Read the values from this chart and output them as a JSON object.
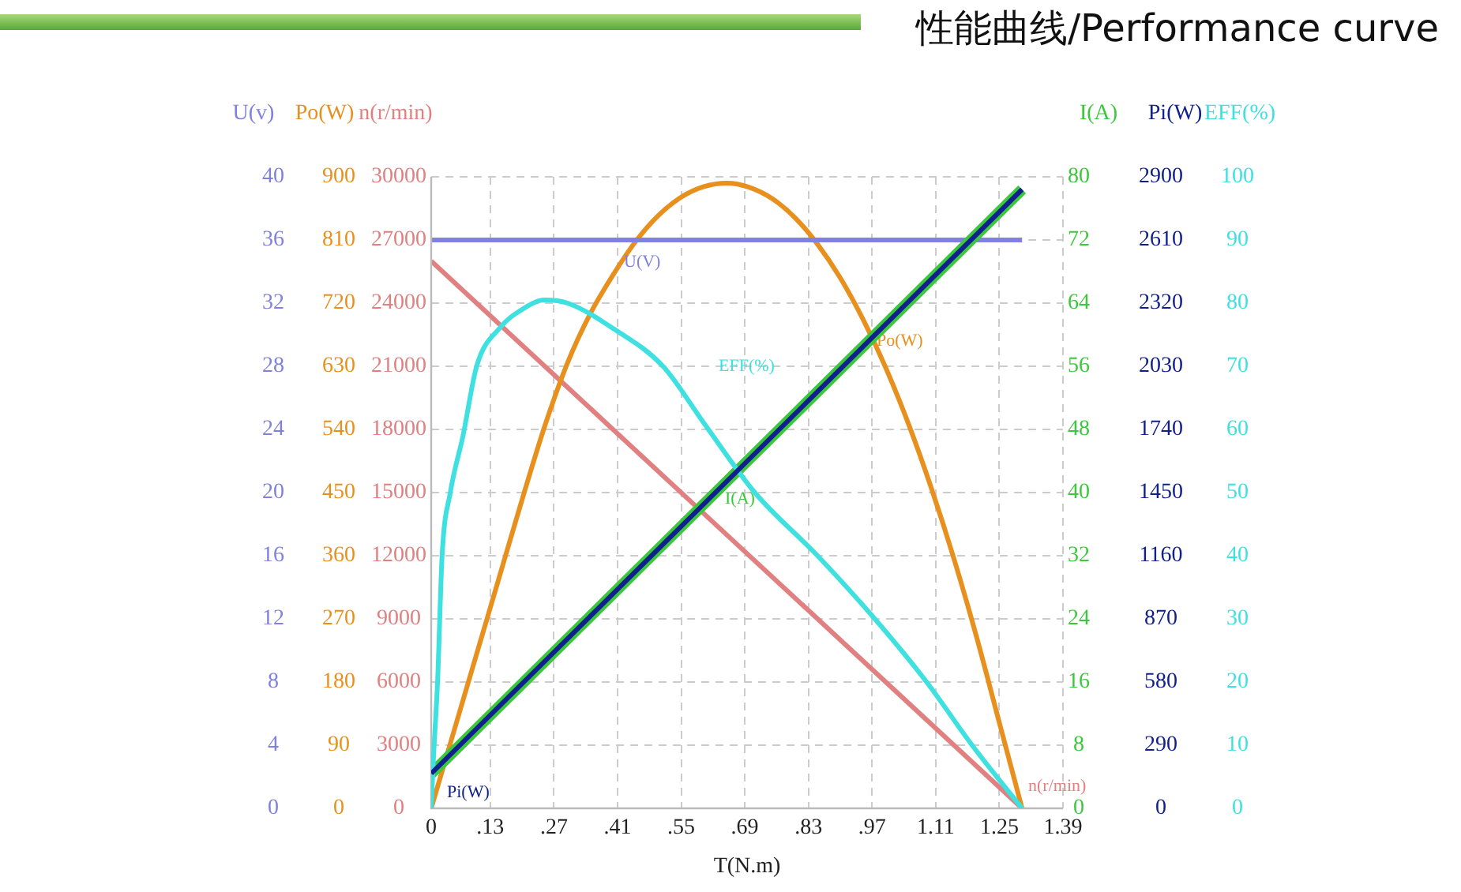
{
  "chart_data": [
    {
      "type": "line",
      "title": "性能曲线/Performance curve",
      "xlabel": "T(N.m)",
      "ylabel": "U(v)",
      "y2label": "Po(W)",
      "y3label": "n(r/min)",
      "xlim": [
        0,
        1.39
      ],
      "xticks": [
        0,
        {
          "value": 0.13,
          "label": ".13"
        },
        {
          "value": 0.27,
          "label": ".27"
        },
        {
          "value": 0.41,
          "label": ".41"
        },
        {
          "value": 0.55,
          "label": ".55"
        },
        {
          "value": 0.69,
          "label": ".69"
        },
        {
          "value": 0.83,
          "label": ".83"
        },
        {
          "value": 0.97,
          "label": ".97"
        },
        1.11,
        1.25,
        1.39
      ],
      "ylim": [
        0,
        40
      ],
      "yticks": [
        0,
        4,
        8,
        12,
        16,
        20,
        24,
        28,
        32,
        36,
        40
      ],
      "y2lim": [
        0,
        900
      ],
      "y2ticks": [
        0,
        90,
        180,
        270,
        360,
        450,
        540,
        630,
        720,
        810,
        900
      ],
      "y3lim": [
        0,
        30000
      ],
      "y3ticks": [
        0,
        3000,
        6000,
        9000,
        12000,
        15000,
        18000,
        21000,
        24000,
        27000,
        30000
      ],
      "grid": true,
      "legend": false,
      "marker": "none",
      "series": [
        {
          "name": "U(V)",
          "color": "#8080e0",
          "axis": "y",
          "x": [
            0,
            1.3
          ],
          "values": [
            36,
            36
          ]
        },
        {
          "name": "Po(W)",
          "color": "#e8901e",
          "axis": "y2",
          "x": [
            0,
            0.05,
            0.1,
            0.15,
            0.2,
            0.25,
            0.3,
            0.35,
            0.4,
            0.45,
            0.5,
            0.55,
            0.6,
            0.65,
            0.7,
            0.75,
            0.8,
            0.85,
            0.9,
            0.95,
            1.0,
            1.05,
            1.1,
            1.15,
            1.2,
            1.25,
            1.3
          ],
          "values": [
            0,
            110,
            220,
            330,
            440,
            545,
            635,
            705,
            760,
            808,
            845,
            871,
            886,
            891,
            885,
            869,
            842,
            804,
            756,
            697,
            628,
            548,
            457,
            356,
            244,
            122,
            0
          ]
        },
        {
          "name": "n(r/min)",
          "color": "#e08080",
          "axis": "y3",
          "x": [
            0,
            1.3
          ],
          "values": [
            26000,
            0
          ]
        }
      ]
    },
    {
      "type": "line",
      "ylabel": "I(A)",
      "y2label": "Pi(W)",
      "y3label": "EFF(%)",
      "xlim": [
        0,
        1.39
      ],
      "tick_labels": "y",
      "ylim": [
        0,
        80
      ],
      "yticks": [
        0,
        8,
        16,
        24,
        32,
        40,
        48,
        56,
        64,
        72,
        80
      ],
      "y2lim": [
        0,
        2900
      ],
      "y2ticks": [
        0,
        290,
        580,
        870,
        1160,
        1450,
        1740,
        2030,
        2320,
        2610,
        2900
      ],
      "y3lim": [
        0,
        100
      ],
      "y3ticks": [
        0,
        10,
        20,
        30,
        40,
        50,
        60,
        70,
        80,
        90,
        100
      ],
      "legend": false,
      "marker": "none",
      "series": [
        {
          "name": "Pi(W)",
          "color": "#10208c",
          "axis": "y2",
          "x": [
            0,
            1.3
          ],
          "values": [
            160,
            2842
          ]
        },
        {
          "name": "EFF(%)",
          "color": "#3ee0e0",
          "axis": "y3",
          "x": [
            0,
            0.005,
            0.014,
            0.024,
            0.042,
            0.07,
            0.1,
            0.15,
            0.2,
            0.25,
            0.3,
            0.4,
            0.51,
            0.6,
            0.712,
            0.85,
            0.976,
            1.09,
            1.19,
            1.3
          ],
          "values": [
            0,
            8,
            20,
            40,
            50,
            59,
            70,
            76,
            79,
            80.5,
            80,
            76,
            70,
            61,
            50,
            40,
            30,
            20,
            10,
            0
          ]
        },
        {
          "name": "I(A)",
          "color": "#3cc83c",
          "axis": "y",
          "x": [
            0,
            1.3
          ],
          "values": [
            4.4,
            78.4
          ]
        }
      ]
    }
  ]
}
